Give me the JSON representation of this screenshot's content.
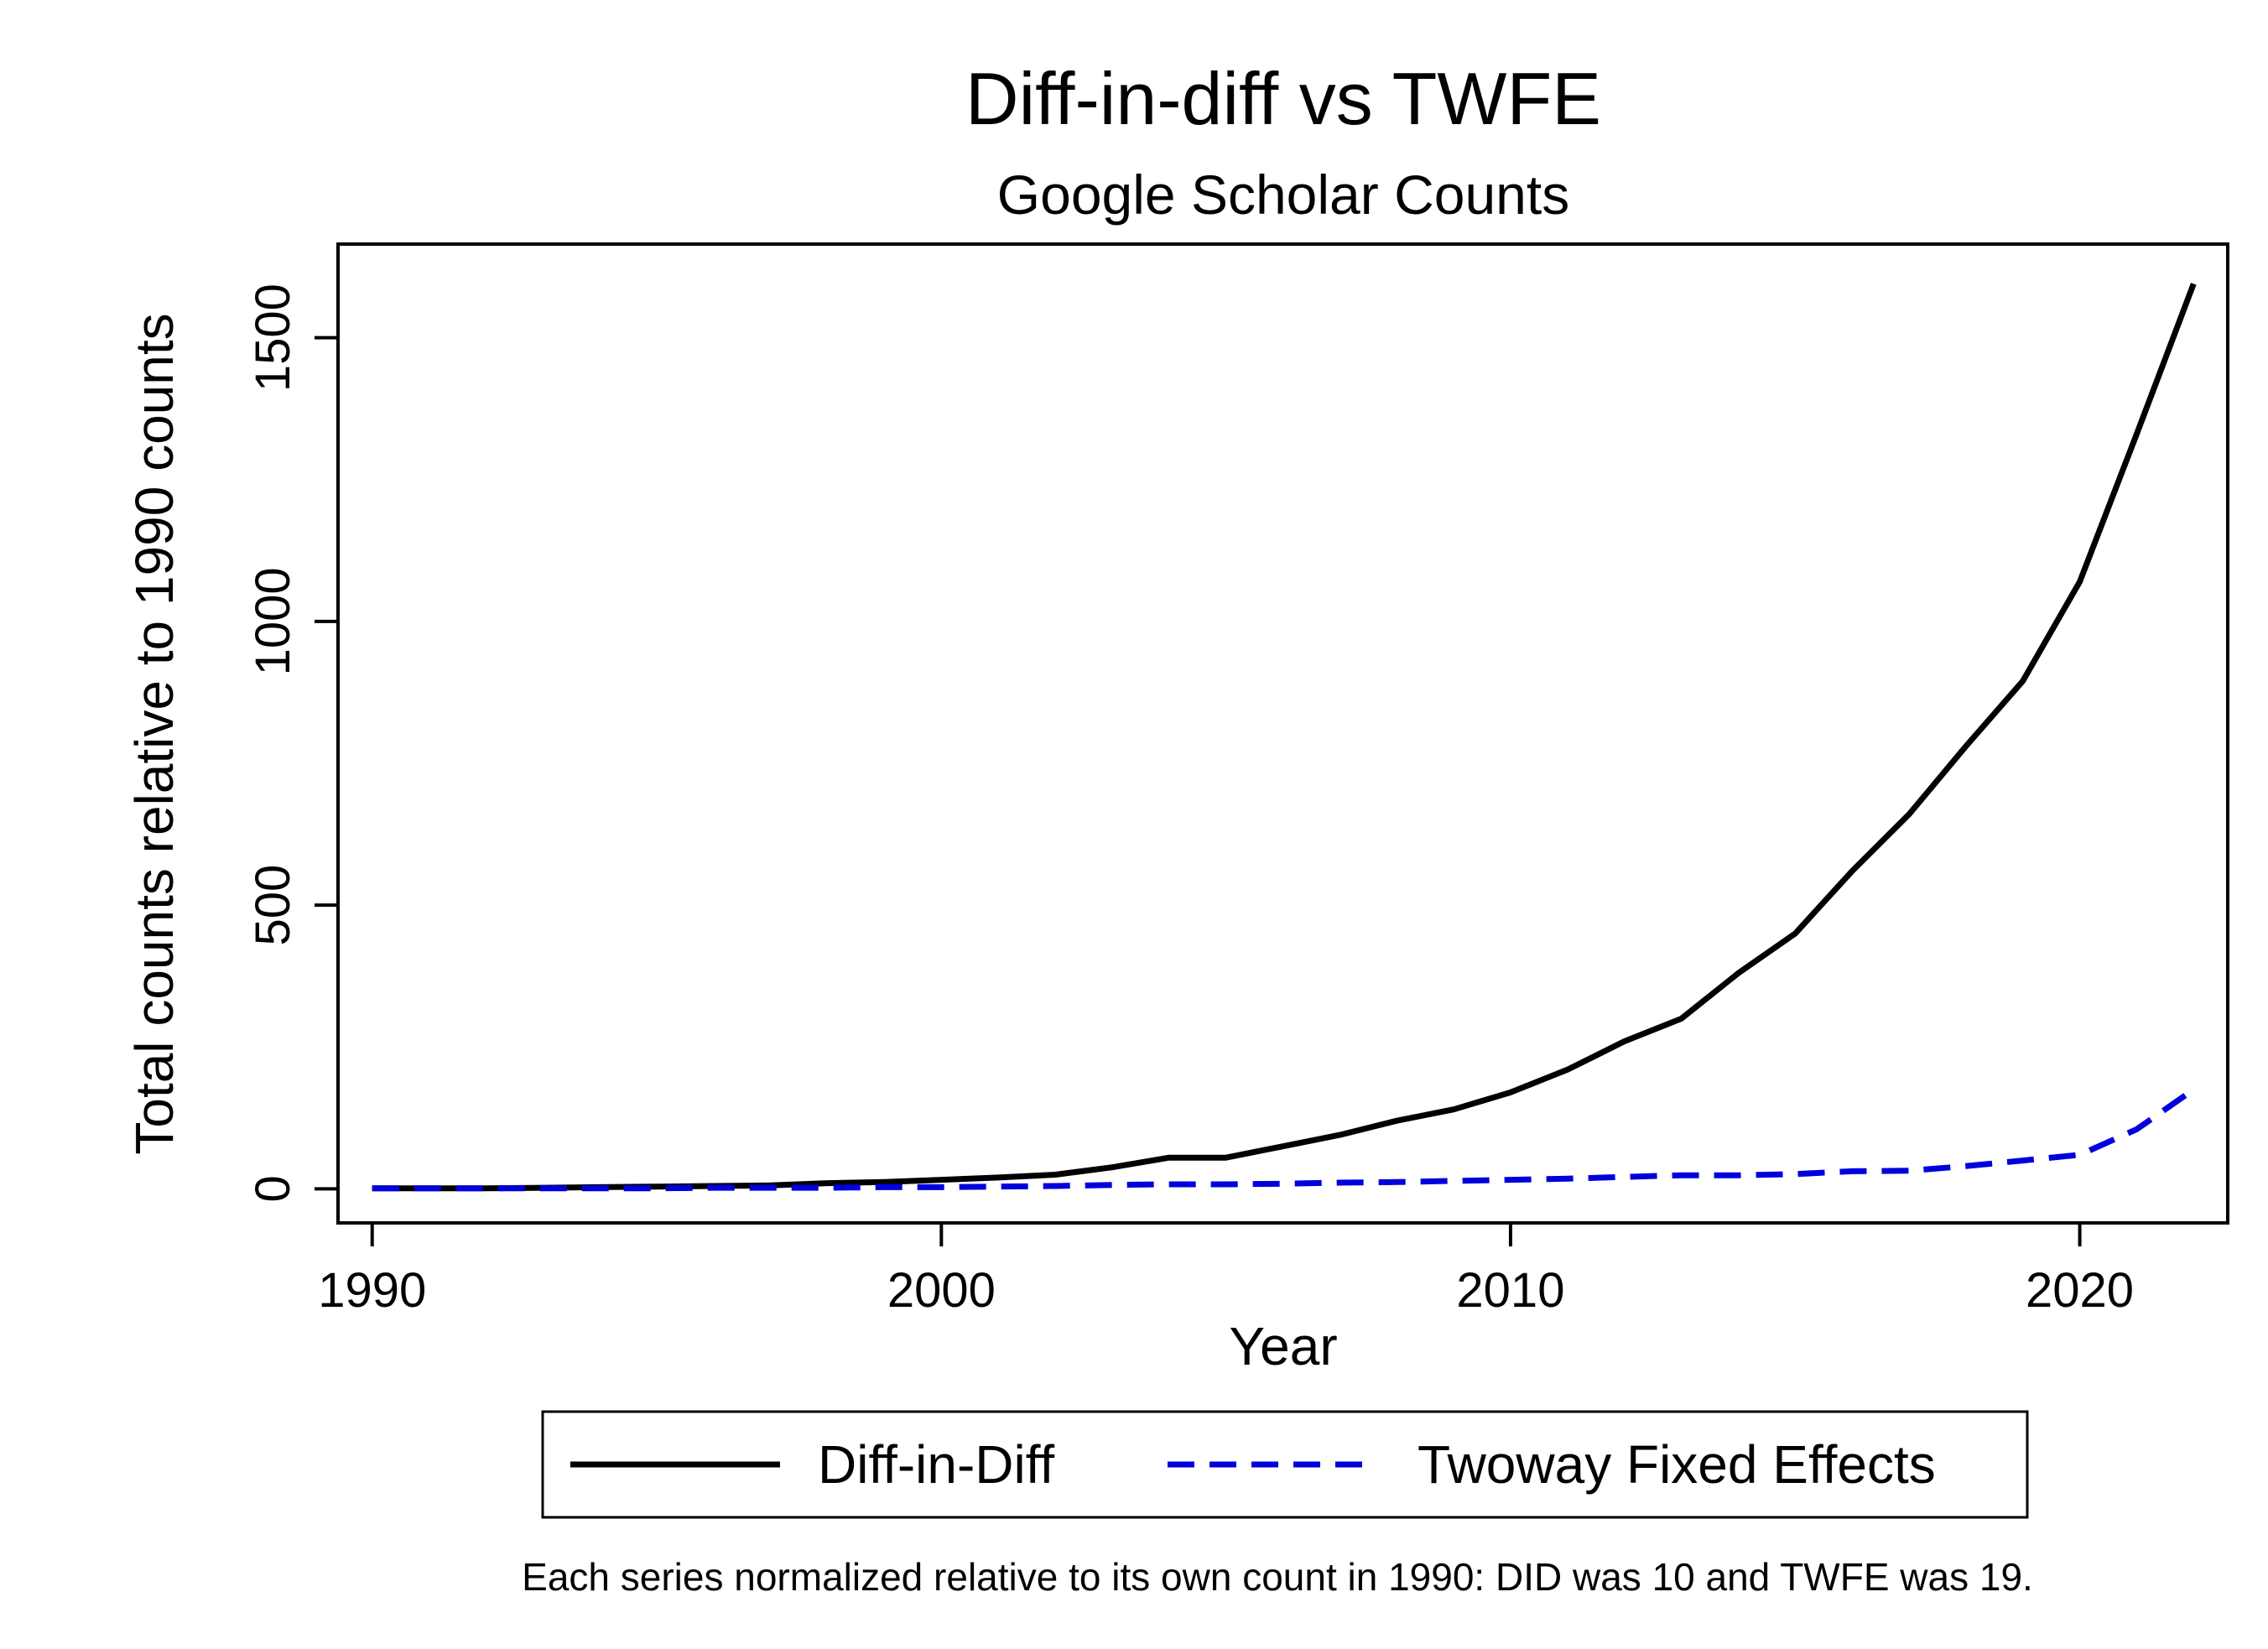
{
  "chart_data": {
    "type": "line",
    "title": "Diff-in-diff vs TWFE",
    "subtitle": "Google Scholar Counts",
    "xlabel": "Year",
    "ylabel": "Total counts relative to 1990 counts",
    "xlim": [
      1989.4,
      2022.6
    ],
    "ylim": [
      -60,
      1665
    ],
    "xticks": [
      1990,
      2000,
      2010,
      2020
    ],
    "yticks": [
      0,
      500,
      1000,
      1500
    ],
    "grid": false,
    "legend_position": "bottom",
    "note": "Each series normalized relative to its own count in 1990: DID was 10 and TWFE was 19.",
    "x": [
      1990,
      1991,
      1992,
      1993,
      1994,
      1995,
      1996,
      1997,
      1998,
      1999,
      2000,
      2001,
      2002,
      2003,
      2004,
      2005,
      2006,
      2007,
      2008,
      2009,
      2010,
      2011,
      2012,
      2013,
      2014,
      2015,
      2016,
      2017,
      2018,
      2019,
      2020,
      2021,
      2022
    ],
    "series": [
      {
        "name": "Diff-in-Diff",
        "color": "#000000",
        "style": "solid",
        "values": [
          1,
          1,
          1,
          2,
          3,
          4,
          5,
          6,
          10,
          12,
          16,
          20,
          25,
          38,
          55,
          55,
          75,
          95,
          120,
          140,
          170,
          210,
          260,
          300,
          380,
          450,
          560,
          660,
          780,
          895,
          1070,
          1330,
          1595
        ]
      },
      {
        "name": "Twoway Fixed Effects",
        "color": "#0000dd",
        "style": "dashed",
        "values": [
          1,
          1,
          1,
          1,
          1,
          1,
          2,
          2,
          2,
          3,
          3,
          4,
          5,
          7,
          8,
          8,
          9,
          11,
          12,
          14,
          16,
          18,
          21,
          24,
          24,
          26,
          31,
          32,
          40,
          50,
          60,
          105,
          175
        ]
      }
    ]
  }
}
